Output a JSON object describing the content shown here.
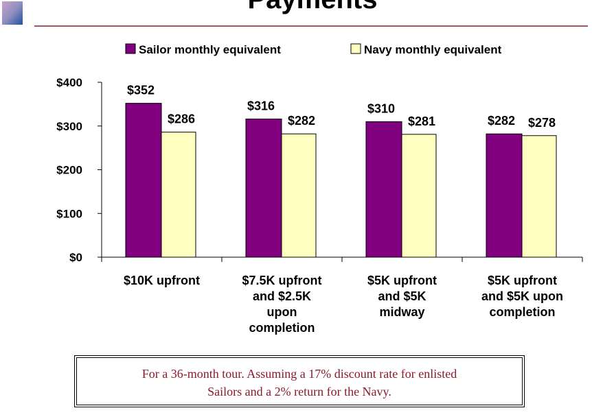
{
  "chart_data": {
    "type": "bar",
    "title": "Payments",
    "categories": [
      "$10K upfront",
      "$7.5K upfront\nand $2.5K\nupon\ncompletion",
      "$5K upfront\nand $5K\nmidway",
      "$5K upfront\nand $5K upon\ncompletion"
    ],
    "series": [
      {
        "name": "Sailor monthly equivalent",
        "color": "#800080",
        "values": [
          352,
          316,
          310,
          282
        ],
        "value_labels": [
          "$352",
          "$316",
          "$310",
          "$282"
        ]
      },
      {
        "name": "Navy monthly equivalent",
        "color": "#ffffc0",
        "values": [
          286,
          282,
          281,
          278
        ],
        "value_labels": [
          "$286",
          "$282",
          "$281",
          "$278"
        ]
      }
    ],
    "ylim": [
      0,
      400
    ],
    "yticks": [
      {
        "value": 0,
        "label": "$0"
      },
      {
        "value": 100,
        "label": "$100"
      },
      {
        "value": 200,
        "label": "$200"
      },
      {
        "value": 300,
        "label": "$300"
      },
      {
        "value": 400,
        "label": "$400"
      }
    ],
    "legend": "top",
    "note": "For a 36-month tour.  Assuming a 17% discount rate for enlisted\nSailors and a 2% return for the Navy."
  }
}
